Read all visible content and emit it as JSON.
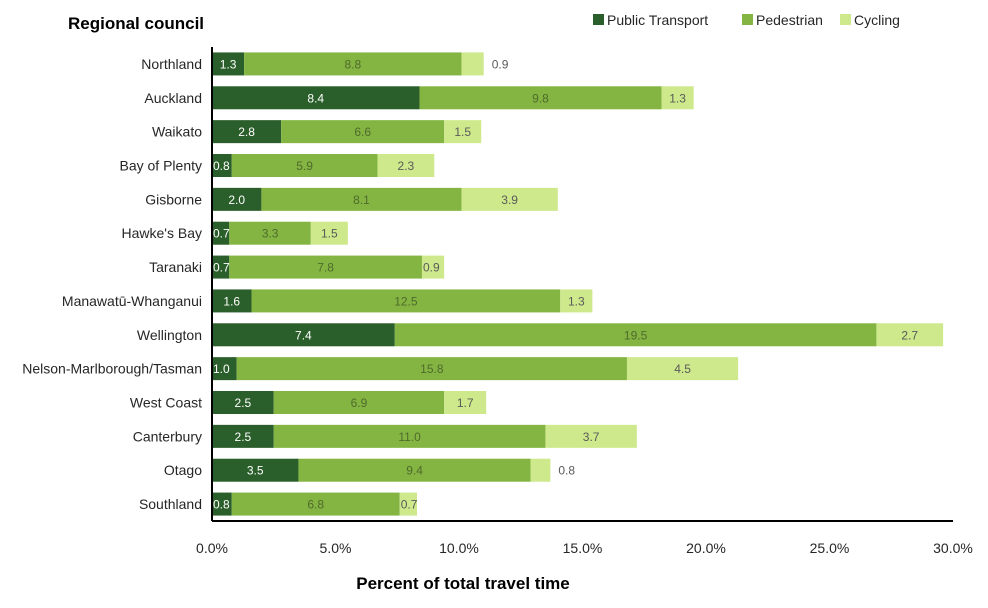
{
  "chart_data": {
    "type": "bar",
    "orientation": "horizontal",
    "stacked": true,
    "title": "",
    "ylabel": "Regional council",
    "xlabel": "Percent of total travel time",
    "xlim": [
      0,
      30
    ],
    "x_ticks": [
      "0.0%",
      "5.0%",
      "10.0%",
      "15.0%",
      "20.0%",
      "25.0%",
      "30.0%"
    ],
    "x_tick_values": [
      0,
      5,
      10,
      15,
      20,
      25,
      30
    ],
    "grid": false,
    "legend_position": "top-right",
    "categories": [
      "Northland",
      "Auckland",
      "Waikato",
      "Bay of Plenty",
      "Gisborne",
      "Hawke's Bay",
      "Taranaki",
      "Manawatū-Whanganui",
      "Wellington",
      "Nelson-Marlborough/Tasman",
      "West Coast",
      "Canterbury",
      "Otago",
      "Southland"
    ],
    "series": [
      {
        "name": "Public Transport",
        "color": "#2a5e2a",
        "label_color": "#ffffff",
        "values": [
          1.3,
          8.4,
          2.8,
          0.8,
          2.0,
          0.7,
          0.7,
          1.6,
          7.4,
          1.0,
          2.5,
          2.5,
          3.5,
          0.8
        ]
      },
      {
        "name": "Pedestrian",
        "color": "#84b542",
        "label_color": "#4f6b2c",
        "values": [
          8.8,
          9.8,
          6.6,
          5.9,
          8.1,
          3.3,
          7.8,
          12.5,
          19.5,
          15.8,
          6.9,
          11.0,
          9.4,
          6.8
        ]
      },
      {
        "name": "Cycling",
        "color": "#cde98b",
        "label_color": "#5a5a5a",
        "values": [
          0.9,
          1.3,
          1.5,
          2.3,
          3.9,
          1.5,
          0.9,
          1.3,
          2.7,
          4.5,
          1.7,
          3.7,
          0.8,
          0.7
        ]
      }
    ],
    "data_labels_outside": {
      "Cycling": [
        "Northland",
        "Otago"
      ]
    }
  }
}
